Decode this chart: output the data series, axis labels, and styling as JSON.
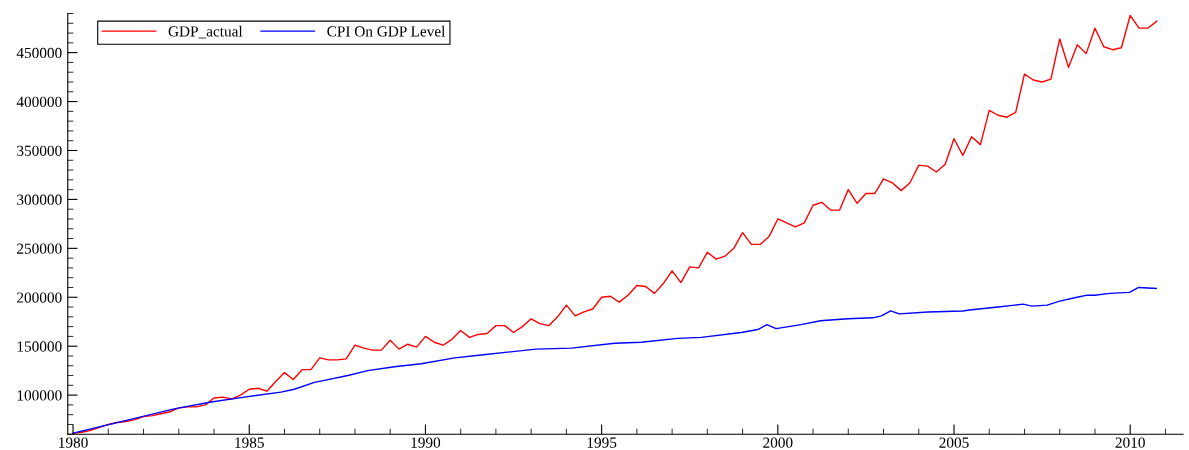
{
  "chart_data": {
    "type": "line",
    "legend": "top left",
    "grid": false,
    "xlim": [
      1979.85,
      2011.5
    ],
    "ylim": [
      60000,
      490000
    ],
    "xticks": [
      1980,
      1985,
      1990,
      1995,
      2000,
      2005,
      2010
    ],
    "yticks": [
      100000,
      150000,
      200000,
      250000,
      300000,
      350000,
      400000,
      450000
    ],
    "series": [
      {
        "name": "GDP_actual",
        "color": "#ff0000",
        "x": [
          1980,
          1980.25,
          1980.5,
          1980.75,
          1981,
          1981.25,
          1981.5,
          1981.75,
          1982,
          1982.25,
          1982.5,
          1982.75,
          1983,
          1983.25,
          1983.5,
          1983.75,
          1984,
          1984.25,
          1984.5,
          1984.75,
          1985,
          1985.25,
          1985.5,
          1985.75,
          1986,
          1986.25,
          1986.5,
          1986.75,
          1987,
          1987.25,
          1987.5,
          1987.75,
          1988,
          1988.25,
          1988.5,
          1988.75,
          1989,
          1989.25,
          1989.5,
          1989.75,
          1990,
          1990.25,
          1990.5,
          1990.75,
          1991,
          1991.25,
          1991.5,
          1991.75,
          1992,
          1992.25,
          1992.5,
          1992.75,
          1993,
          1993.25,
          1993.5,
          1993.75,
          1994,
          1994.25,
          1994.5,
          1994.75,
          1995,
          1995.25,
          1995.5,
          1995.75,
          1996,
          1996.25,
          1996.5,
          1996.75,
          1997,
          1997.25,
          1997.5,
          1997.75,
          1998,
          1998.25,
          1998.5,
          1998.75,
          1999,
          1999.25,
          1999.5,
          1999.75,
          2000,
          2000.25,
          2000.5,
          2000.75,
          2001,
          2001.25,
          2001.5,
          2001.75,
          2002,
          2002.25,
          2002.5,
          2002.75,
          2003,
          2003.25,
          2003.5,
          2003.75,
          2004,
          2004.25,
          2004.5,
          2004.75,
          2005,
          2005.25,
          2005.5,
          2005.75,
          2006,
          2006.25,
          2006.5,
          2006.75,
          2007,
          2007.25,
          2007.5,
          2007.75,
          2008,
          2008.25,
          2008.5,
          2008.75,
          2009,
          2009.25,
          2009.5,
          2009.75,
          2010,
          2010.25,
          2010.5,
          2010.75
        ],
        "values": [
          61000,
          62000,
          64000,
          67000,
          70000,
          72000,
          73000,
          75000,
          78000,
          79000,
          81000,
          83000,
          87000,
          88000,
          88000,
          90000,
          97000,
          98000,
          96000,
          100000,
          106000,
          107000,
          104000,
          114000,
          123000,
          116000,
          126000,
          126000,
          138000,
          136000,
          136000,
          137000,
          151000,
          148000,
          146000,
          146000,
          156000,
          147000,
          152000,
          149000,
          160000,
          154000,
          151000,
          157000,
          166000,
          159000,
          162000,
          163000,
          171000,
          171000,
          164000,
          170000,
          178000,
          173000,
          171000,
          180000,
          192000,
          181000,
          185000,
          188000,
          200000,
          201000,
          195000,
          202000,
          212000,
          211000,
          204000,
          214000,
          227000,
          215000,
          231000,
          230000,
          246000,
          239000,
          242000,
          250000,
          266000,
          254000,
          254000,
          262000,
          280000,
          276000,
          272000,
          276000,
          294000,
          297000,
          289000,
          289000,
          310000,
          296000,
          306000,
          306000,
          321000,
          317000,
          309000,
          317000,
          335000,
          334000,
          328000,
          336000,
          362000,
          345000,
          364000,
          356000,
          391000,
          386000,
          384000,
          389000,
          428000,
          422000,
          420000,
          423000,
          464000,
          435000,
          458000,
          449000,
          475000,
          456000,
          453000,
          455000,
          488000,
          475000,
          475000,
          482000
        ]
      },
      {
        "name": "CPI On GDP Level",
        "color": "#0000ff",
        "x": [
          1980.0,
          1981.84,
          1982.87,
          1983.92,
          1984.86,
          1985.9,
          1986.28,
          1986.85,
          1987.13,
          1987.8,
          1988.36,
          1989.12,
          1989.88,
          1990.83,
          1991.58,
          1993.14,
          1994.14,
          1995.37,
          1996.12,
          1997.16,
          1997.83,
          1998.96,
          1999.43,
          1999.69,
          1999.95,
          2000.66,
          2001.21,
          2001.99,
          2002.7,
          2002.94,
          2003.2,
          2003.45,
          2004.26,
          2005.25,
          2005.44,
          2006.25,
          2006.72,
          2006.96,
          2007.21,
          2007.64,
          2008.0,
          2008.49,
          2008.75,
          2008.99,
          2009.42,
          2009.98,
          2010.24,
          2010.74
        ],
        "values": [
          61000,
          77000,
          86000,
          93000,
          98000,
          103000,
          106000,
          113000,
          115000,
          120000,
          125000,
          129000,
          132000,
          138000,
          141000,
          147000,
          148000,
          153000,
          154000,
          158000,
          159000,
          164000,
          167000,
          172000,
          168000,
          172000,
          176000,
          178000,
          179000,
          181000,
          186000,
          183000,
          185000,
          186000,
          187000,
          190000,
          192000,
          193000,
          191000,
          192000,
          196000,
          200000,
          202000,
          202000,
          204000,
          205000,
          210000,
          209000
        ]
      }
    ]
  }
}
